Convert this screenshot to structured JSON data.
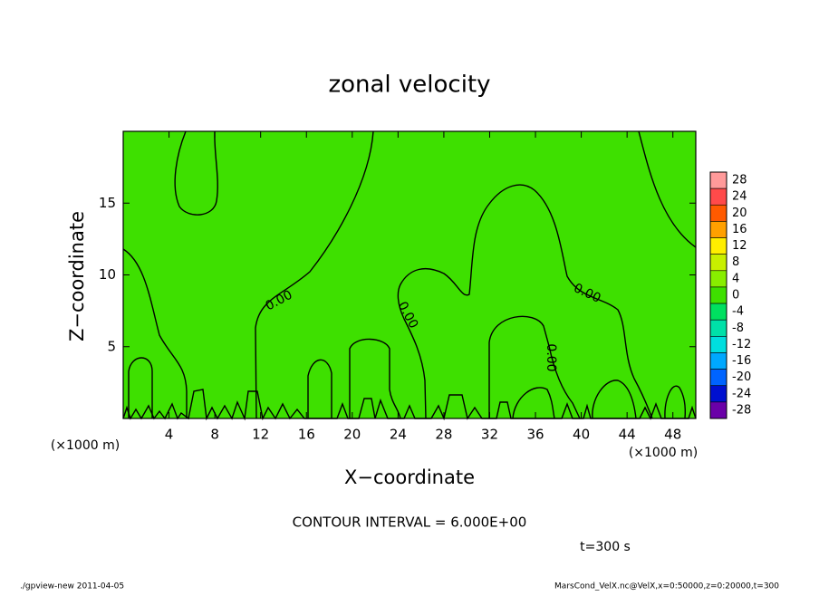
{
  "chart_data": {
    "type": "contour",
    "title": "zonal velocity",
    "xlabel": "X−coordinate",
    "ylabel": "Z−coordinate",
    "x_unit": "(×1000 m)",
    "xlim": [
      0,
      50
    ],
    "xticks": [
      4,
      8,
      12,
      16,
      20,
      24,
      28,
      32,
      36,
      40,
      44,
      48
    ],
    "ylim": [
      0,
      20
    ],
    "yticks": [
      5,
      10,
      15
    ],
    "contour_labels": [
      "0.00",
      "0.00",
      "0.00",
      "0.00"
    ],
    "contour_interval_text": "CONTOUR INTERVAL = 6.000E+00",
    "time_text": "t=300 s",
    "colorbar": {
      "lim": [
        -30,
        30
      ],
      "ticks": [
        28,
        24,
        20,
        16,
        12,
        8,
        4,
        0,
        -4,
        -8,
        -12,
        -16,
        -20,
        -24,
        -28
      ],
      "colors": [
        "#ff9a9a",
        "#ff4a4a",
        "#ff5a00",
        "#ffa000",
        "#ffee00",
        "#c8f000",
        "#88ee00",
        "#3ee000",
        "#00e060",
        "#00e0a8",
        "#00dede",
        "#00a8ff",
        "#0064ff",
        "#0010d0",
        "#6a00a8"
      ]
    },
    "footer_left": "./gpview-new   2011-04-05",
    "footer_right": "MarsCond_VelX.nc@VelX,x=0:50000,z=0:20000,t=300"
  }
}
